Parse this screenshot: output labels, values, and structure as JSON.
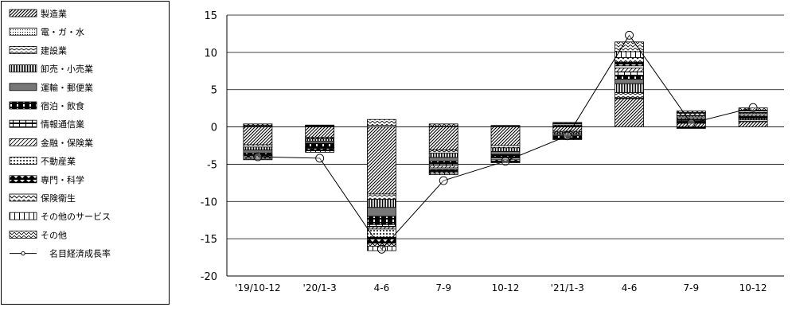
{
  "chart_data": {
    "type": "bar",
    "stacked": true,
    "categories": [
      "'19/10-12",
      "'20/1-3",
      "4-6",
      "7-9",
      "10-12",
      "'21/1-3",
      "4-6",
      "7-9",
      "10-12"
    ],
    "ylim": [
      -20,
      15
    ],
    "yticks": [
      15,
      10,
      5,
      0,
      -5,
      -10,
      -15,
      -20
    ],
    "grid": true,
    "legend_position": "left",
    "series": [
      {
        "name": "製造業",
        "pattern": "diag-dense",
        "values": [
          -2.4,
          -1.4,
          -9.0,
          -3.1,
          -2.5,
          -0.6,
          3.8,
          0.5,
          0.7
        ]
      },
      {
        "name": "電・ガ・水",
        "pattern": "dots-small",
        "values": [
          0.1,
          0.1,
          0.2,
          0.1,
          0.1,
          0.05,
          0.1,
          0.05,
          0.05
        ]
      },
      {
        "name": "建設業",
        "pattern": "wave",
        "values": [
          -0.3,
          -0.2,
          -0.7,
          -0.4,
          -0.3,
          -0.2,
          0.7,
          0.1,
          0.2
        ]
      },
      {
        "name": "卸売・小売業",
        "pattern": "vert-lines",
        "values": [
          -0.4,
          -0.3,
          -1.1,
          -0.6,
          -0.5,
          -0.2,
          1.2,
          0.1,
          0.2
        ]
      },
      {
        "name": "運輸・郵便業",
        "pattern": "gray",
        "values": [
          -0.4,
          -0.3,
          -1.2,
          -0.5,
          -0.4,
          -0.2,
          0.6,
          0.1,
          0.1
        ]
      },
      {
        "name": "宿泊・飲食",
        "pattern": "black-dash",
        "values": [
          -0.2,
          -0.5,
          -1.1,
          -0.4,
          -0.3,
          -0.3,
          0.4,
          -0.2,
          0.1
        ]
      },
      {
        "name": "情報通信業",
        "pattern": "white-dash",
        "values": [
          -0.1,
          -0.1,
          -0.3,
          -0.2,
          -0.1,
          0.05,
          0.6,
          0.2,
          0.1
        ]
      },
      {
        "name": "金融・保険業",
        "pattern": "diag-sparse",
        "values": [
          -0.1,
          -0.1,
          -0.3,
          -0.3,
          -0.1,
          0.1,
          0.5,
          0.2,
          0.2
        ]
      },
      {
        "name": "不動産業",
        "pattern": "dots-large",
        "values": [
          0.1,
          0.05,
          -1.1,
          -0.2,
          -0.2,
          0.2,
          0.3,
          0.2,
          0.2
        ]
      },
      {
        "name": "専門・科学",
        "pattern": "black-tri",
        "values": [
          -0.2,
          -0.2,
          -0.8,
          -0.3,
          -0.2,
          -0.1,
          0.5,
          0.1,
          0.1
        ]
      },
      {
        "name": "保険衛生",
        "pattern": "zigzag",
        "values": [
          -0.2,
          -0.1,
          -0.4,
          -0.2,
          -0.1,
          0.1,
          0.6,
          0.3,
          0.2
        ]
      },
      {
        "name": "その他のサービス",
        "pattern": "white-box",
        "values": [
          -0.1,
          -0.2,
          -0.6,
          -0.2,
          -0.1,
          -0.1,
          0.8,
          0.1,
          0.1
        ]
      },
      {
        "name": "その他",
        "pattern": "zigzag-2",
        "values": [
          0.2,
          0.1,
          0.8,
          0.3,
          0.1,
          0.1,
          1.3,
          0.2,
          0.3
        ]
      }
    ],
    "line_series": {
      "name": "名目経済成長率",
      "values": [
        -4.0,
        -4.2,
        -16.4,
        -7.2,
        -4.6,
        -1.2,
        12.3,
        0.5,
        2.6
      ]
    }
  }
}
